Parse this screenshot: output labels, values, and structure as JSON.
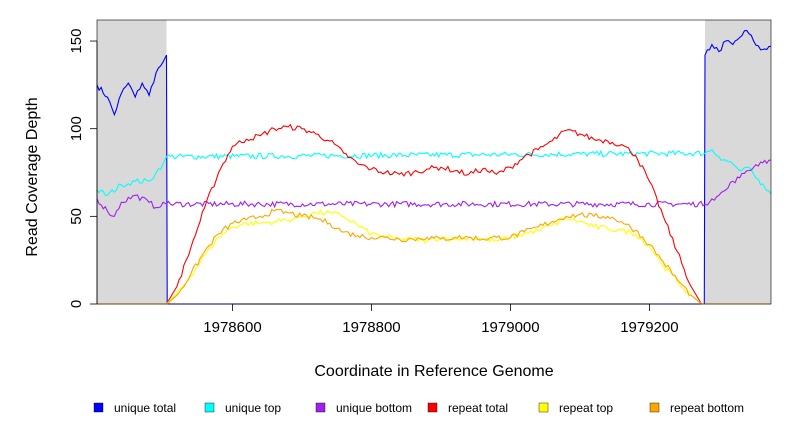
{
  "chart_data": {
    "type": "line",
    "title": "",
    "xlabel": "Coordinate in Reference Genome",
    "ylabel": "Read Coverage Depth",
    "xlim": [
      1978405,
      1979375
    ],
    "ylim": [
      0,
      162
    ],
    "xticks": [
      1978600,
      1978800,
      1979000,
      1979200
    ],
    "yticks": [
      0,
      50,
      100,
      150
    ],
    "grid": false,
    "legend_position": "bottom",
    "shaded_regions": [
      {
        "from": 1978405,
        "to": 1978505,
        "color": "#d9d9d9"
      },
      {
        "from": 1979280,
        "to": 1979375,
        "color": "#d9d9d9"
      }
    ],
    "series": [
      {
        "name": "unique total",
        "color": "#0000ff",
        "x": [
          1978405,
          1978420,
          1978430,
          1978440,
          1978450,
          1978460,
          1978470,
          1978480,
          1978490,
          1978500,
          1978505,
          1978506,
          1979279,
          1979280,
          1979290,
          1979300,
          1979310,
          1979320,
          1979330,
          1979340,
          1979350,
          1979360,
          1979375
        ],
        "values": [
          125,
          118,
          108,
          120,
          126,
          118,
          126,
          119,
          132,
          138,
          142,
          0,
          0,
          142,
          148,
          144,
          150,
          148,
          152,
          156,
          150,
          145,
          147
        ]
      },
      {
        "name": "unique top",
        "color": "#00ffff",
        "x": [
          1978405,
          1978420,
          1978440,
          1978460,
          1978480,
          1978490,
          1978500,
          1978505,
          1979280,
          1979290,
          1979300,
          1979310,
          1979320,
          1979330,
          1979340,
          1979350,
          1979360,
          1979375
        ],
        "values": [
          65,
          62,
          68,
          70,
          70,
          75,
          80,
          84,
          86,
          88,
          84,
          82,
          80,
          76,
          78,
          74,
          68,
          63
        ]
      },
      {
        "name": "unique bottom",
        "color": "#a020f0",
        "x": [
          1978405,
          1978420,
          1978430,
          1978440,
          1978460,
          1978480,
          1978490,
          1978500,
          1978505,
          1979280,
          1979290,
          1979300,
          1979310,
          1979320,
          1979330,
          1979340,
          1979350,
          1979360,
          1979375
        ],
        "values": [
          60,
          53,
          50,
          58,
          62,
          58,
          55,
          58,
          57,
          57,
          60,
          62,
          65,
          70,
          72,
          76,
          78,
          81,
          82
        ]
      },
      {
        "name": "repeat total",
        "color": "#ff0000",
        "x": [
          1978505,
          1978520,
          1978540,
          1978560,
          1978580,
          1978600,
          1978620,
          1978640,
          1978660,
          1978680,
          1978700,
          1978720,
          1978740,
          1978760,
          1978780,
          1978800,
          1978820,
          1978840,
          1978860,
          1978880,
          1978900,
          1978920,
          1978940,
          1978960,
          1978980,
          1979000,
          1979020,
          1979040,
          1979060,
          1979080,
          1979100,
          1979120,
          1979140,
          1979160,
          1979180,
          1979200,
          1979220,
          1979240,
          1979260,
          1979275
        ],
        "values": [
          0,
          10,
          32,
          55,
          75,
          90,
          94,
          96,
          100,
          101,
          100,
          97,
          93,
          86,
          80,
          77,
          75,
          74,
          75,
          77,
          78,
          76,
          74,
          77,
          74,
          78,
          84,
          88,
          93,
          99,
          97,
          94,
          93,
          91,
          85,
          70,
          50,
          30,
          10,
          0
        ]
      },
      {
        "name": "repeat top",
        "color": "#ffff00",
        "x": [
          1978505,
          1978520,
          1978540,
          1978560,
          1978580,
          1978600,
          1978620,
          1978640,
          1978660,
          1978680,
          1978700,
          1978720,
          1978740,
          1978760,
          1978780,
          1978800,
          1978820,
          1978840,
          1978860,
          1978880,
          1978900,
          1978920,
          1978940,
          1978960,
          1978980,
          1979000,
          1979020,
          1979040,
          1979060,
          1979080,
          1979100,
          1979120,
          1979140,
          1979160,
          1979180,
          1979200,
          1979220,
          1979240,
          1979260,
          1979275
        ],
        "values": [
          0,
          6,
          16,
          28,
          38,
          44,
          46,
          46,
          47,
          48,
          50,
          52,
          52,
          50,
          45,
          40,
          38,
          37,
          37,
          36,
          38,
          37,
          38,
          37,
          36,
          38,
          40,
          42,
          45,
          49,
          47,
          44,
          43,
          42,
          40,
          33,
          22,
          13,
          5,
          0
        ]
      },
      {
        "name": "repeat bottom",
        "color": "#ffa500",
        "x": [
          1978405,
          1978505,
          1978506,
          1978520,
          1978540,
          1978560,
          1978580,
          1978600,
          1978620,
          1978640,
          1978660,
          1978680,
          1978700,
          1978720,
          1978740,
          1978760,
          1978780,
          1978800,
          1978820,
          1978840,
          1978860,
          1978880,
          1978900,
          1978920,
          1978940,
          1978960,
          1978980,
          1979000,
          1979020,
          1979040,
          1979060,
          1979080,
          1979100,
          1979120,
          1979140,
          1979160,
          1979180,
          1979200,
          1979220,
          1979240,
          1979260,
          1979275,
          1979276,
          1979375
        ],
        "values": [
          0,
          0,
          0,
          5,
          17,
          30,
          40,
          46,
          48,
          50,
          53,
          52,
          50,
          49,
          46,
          41,
          39,
          38,
          38,
          37,
          37,
          38,
          37,
          38,
          38,
          37,
          38,
          38,
          41,
          44,
          47,
          50,
          51,
          50,
          50,
          47,
          42,
          34,
          24,
          14,
          5,
          0,
          0,
          0
        ]
      }
    ]
  }
}
